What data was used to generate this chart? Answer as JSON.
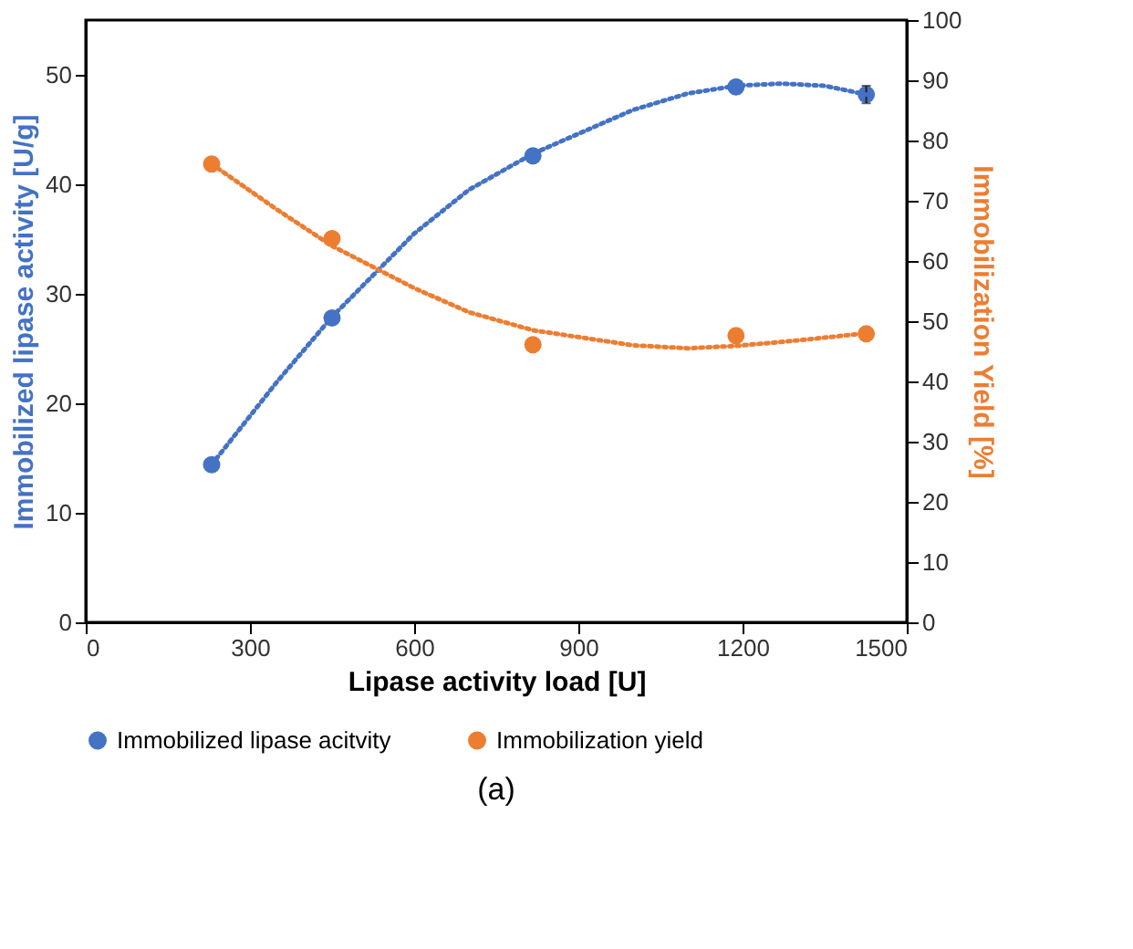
{
  "chart_data": {
    "type": "scatter",
    "xlabel": "Lipase activity load [U]",
    "ylabel": "Immobilized lipase activity [U/g]",
    "y2label": "Immobilization Yield [%]",
    "xlim": [
      0,
      1500
    ],
    "xticks": [
      0,
      300,
      600,
      900,
      1200,
      1500
    ],
    "ylim": [
      0,
      55
    ],
    "yticks": [
      0,
      10,
      20,
      30,
      40,
      50
    ],
    "y2lim": [
      0,
      100
    ],
    "y2ticks": [
      0,
      10,
      20,
      30,
      40,
      50,
      60,
      70,
      80,
      90,
      100
    ],
    "grid": false,
    "legend": "bottom",
    "marker": "circle",
    "annotations": [
      "(a)"
    ],
    "series": [
      {
        "name": "Immobilized lipase acitvity",
        "axis": "y",
        "color": "#4472c4",
        "x": [
          230,
          450,
          817,
          1188,
          1426
        ],
        "values": [
          14.4,
          27.8,
          42.6,
          48.9,
          48.2
        ],
        "errors": [
          null,
          null,
          null,
          null,
          0.8
        ]
      },
      {
        "name": "Immobilization yield",
        "axis": "y2",
        "color": "#ed7d31",
        "x": [
          230,
          450,
          817,
          1188,
          1426
        ],
        "values": [
          76.1,
          63.7,
          46.1,
          47.6,
          47.9
        ]
      },
      {
        "type": "line",
        "axis": "y",
        "color": "#4472c4",
        "line_style": "dotted",
        "marker": "none",
        "x": [
          230,
          350,
          450,
          600,
          700,
          817,
          1000,
          1100,
          1188,
          1270,
          1350,
          1426
        ],
        "values": [
          14.4,
          22,
          27.9,
          35.5,
          39.5,
          42.8,
          46.8,
          48.3,
          49,
          49.2,
          49,
          48.2
        ]
      },
      {
        "type": "line",
        "axis": "y2",
        "color": "#ed7d31",
        "line_style": "dotted",
        "marker": "none",
        "x": [
          230,
          350,
          450,
          600,
          700,
          817,
          1000,
          1100,
          1188,
          1300,
          1426
        ],
        "values": [
          76.1,
          68.5,
          62.5,
          55.5,
          51.5,
          48.5,
          46,
          45.5,
          45.9,
          46.8,
          48
        ]
      }
    ]
  }
}
